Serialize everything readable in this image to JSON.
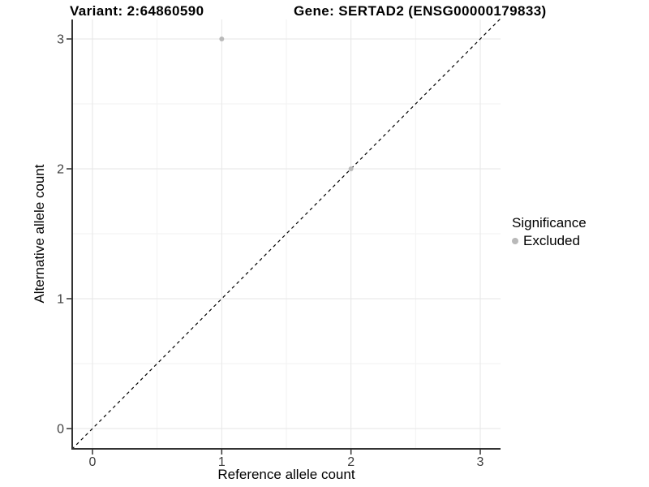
{
  "header": {
    "variant_title": "Variant: 2:64860590",
    "gene_title": "Gene: SERTAD2 (ENSG00000179833)"
  },
  "chart_data": {
    "type": "scatter",
    "title": "Variant: 2:64860590 — Gene: SERTAD2 (ENSG00000179833)",
    "xlabel": "Reference allele count",
    "ylabel": "Alternative allele count",
    "xlim": [
      -0.16,
      3.16
    ],
    "ylim": [
      -0.16,
      3.16
    ],
    "x_ticks": [
      0,
      1,
      2,
      3
    ],
    "y_ticks": [
      0,
      1,
      2,
      3
    ],
    "minor_gridlines": [
      0.5,
      1.5,
      2.5
    ],
    "grid": "major+minor",
    "points": [
      {
        "x": 1,
        "y": 3,
        "series": "Excluded"
      },
      {
        "x": 2,
        "y": 2,
        "series": "Excluded"
      }
    ],
    "reference_line": {
      "type": "identity y=x",
      "style": "dashed",
      "from": [
        -0.16,
        -0.16
      ],
      "to": [
        3.16,
        3.16
      ]
    },
    "legend": {
      "position": "right",
      "title": "Significance",
      "entries": [
        {
          "label": "Excluded",
          "color": "#b9b9b9",
          "marker": "dot"
        }
      ]
    }
  },
  "colors": {
    "background": "#ffffff",
    "point": "#b9b9b9",
    "grid_major": "#e6e6e6",
    "grid_minor": "#f2f2f2",
    "axis_line": "#333333",
    "tick_mark": "#333333",
    "tick_label": "#404040",
    "dashed_line": "#000000",
    "title_text": "#000000"
  }
}
